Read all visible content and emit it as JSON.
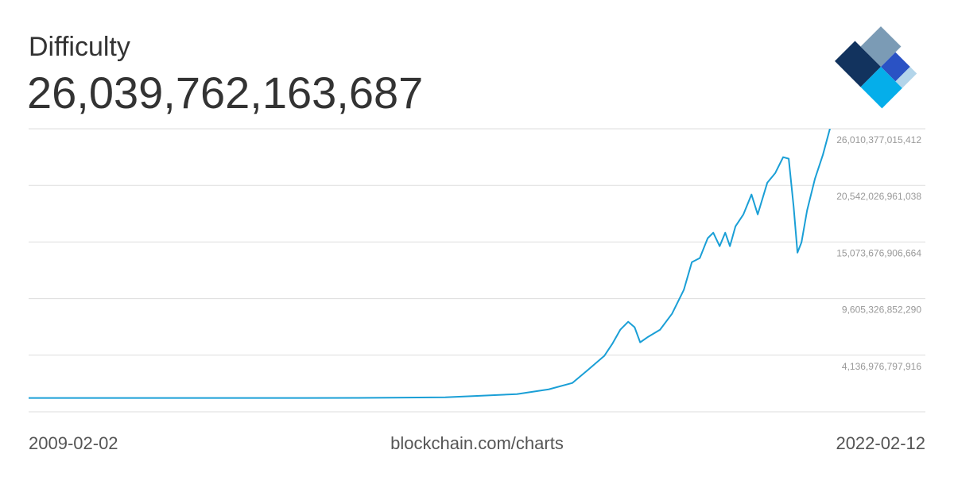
{
  "chart_data": {
    "type": "line",
    "title": "Difficulty",
    "current_value_label": "26,039,762,163,687",
    "source": "blockchain.com/charts",
    "color": "#1a9fd6",
    "grid": true,
    "x": [
      "2009-02-02",
      "2012-07-02",
      "2014-06-11",
      "2015-11-12",
      "2016-05-19",
      "2017-01-10",
      "2017-07-18",
      "2017-12-06",
      "2018-03-11",
      "2018-06-13",
      "2018-07-30",
      "2018-09-16",
      "2018-11-02",
      "2018-12-10",
      "2019-01-12",
      "2019-02-28",
      "2019-05-10",
      "2019-07-20",
      "2019-09-28",
      "2019-11-15",
      "2020-01-01",
      "2020-02-17",
      "2020-03-21",
      "2020-04-28",
      "2020-05-31",
      "2020-06-28",
      "2020-07-31",
      "2020-09-16",
      "2020-11-03",
      "2020-12-10",
      "2021-02-05",
      "2021-03-24",
      "2021-05-10",
      "2021-06-12",
      "2021-07-11",
      "2021-08-03",
      "2021-08-27",
      "2021-09-29",
      "2021-11-15",
      "2022-01-01",
      "2022-02-12"
    ],
    "values": [
      1,
      1800000,
      11000000000,
      70000000000,
      200000000000,
      380000000000,
      840000000000,
      1460000000000,
      2760000000000,
      4070000000000,
      5220000000000,
      6600000000000,
      7370000000000,
      6840000000000,
      5380000000000,
      5910000000000,
      6600000000000,
      8140000000000,
      10440000000000,
      13130000000000,
      13520000000000,
      15440000000000,
      15970000000000,
      14670000000000,
      15970000000000,
      14670000000000,
      16590000000000,
      17740000000000,
      19660000000000,
      17740000000000,
      20810000000000,
      21730000000000,
      23270000000000,
      23120000000000,
      18510000000000,
      14050000000000,
      15050000000000,
      18120000000000,
      21200000000000,
      23500000000000,
      26039762163687
    ],
    "xlim": [
      "2009-02-02",
      "2022-02-12"
    ],
    "ylim": [
      -1331373256458,
      26010377015412
    ],
    "yticks": [
      {
        "value": 4136976797916,
        "label": "4,136,976,797,916"
      },
      {
        "value": 9605326852290,
        "label": "9,605,326,852,290"
      },
      {
        "value": 15073676906664,
        "label": "15,073,676,906,664"
      },
      {
        "value": 20542026961038,
        "label": "20,542,026,961,038"
      },
      {
        "value": 26010377015412,
        "label": "26,010,377,015,412"
      }
    ]
  }
}
